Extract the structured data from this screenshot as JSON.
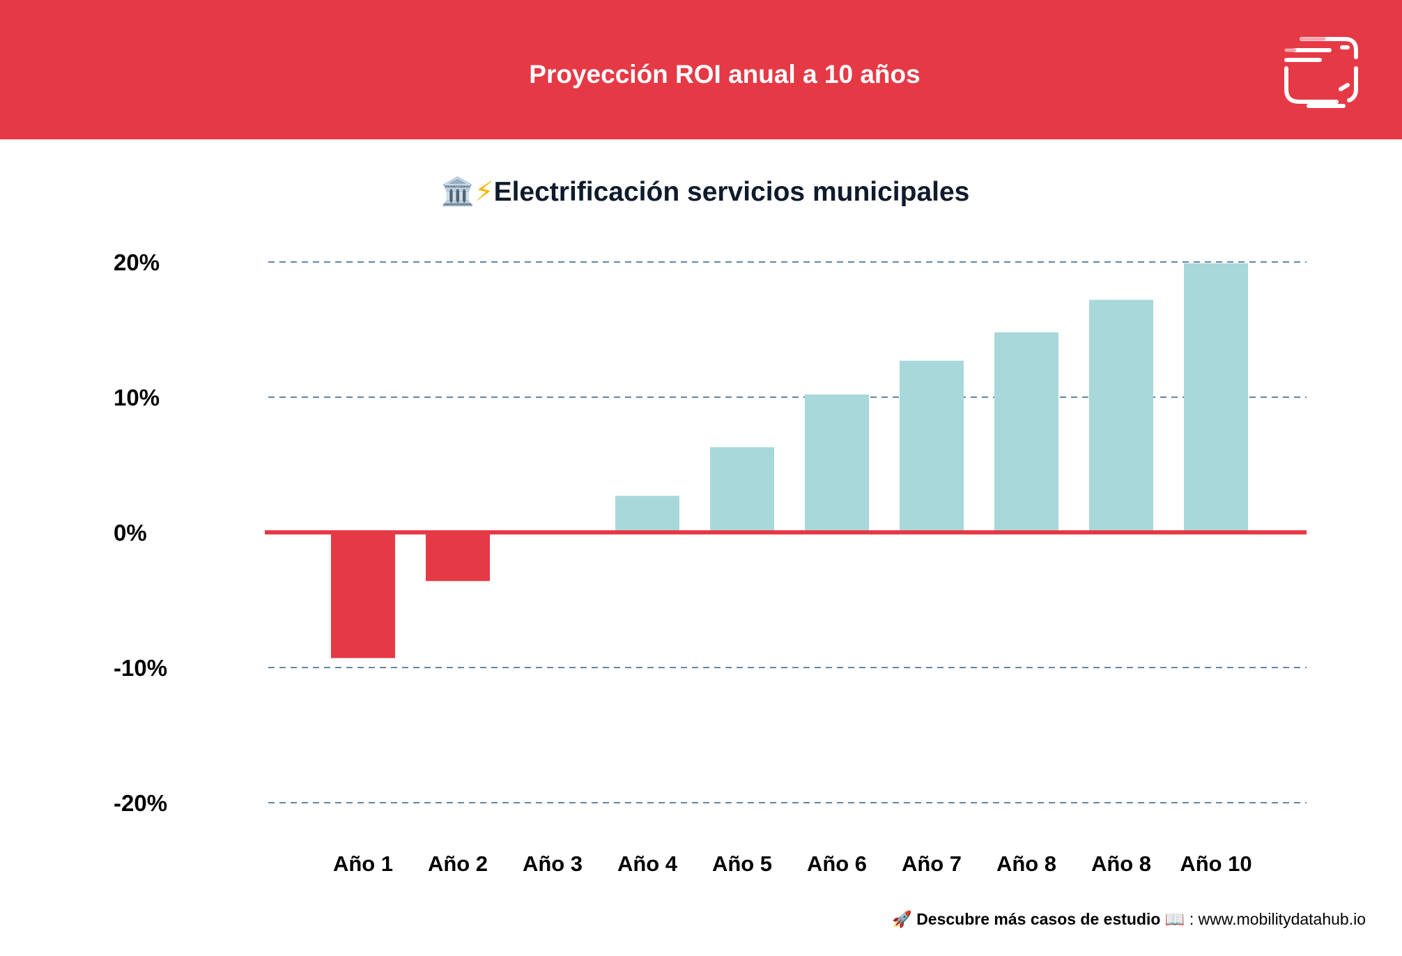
{
  "header": {
    "title": "Proyección ROI anual a 10 años",
    "logo_icon": "mobility-data-hub-logo-icon"
  },
  "subtitle": {
    "emoji_building": "🏛️",
    "emoji_bolt": "⚡",
    "text": "Electrificación servicios municipales"
  },
  "footer": {
    "emoji_rocket": "🚀",
    "cta": "Descubre más casos de estudio",
    "emoji_book": "📖",
    "url_text": ": www.mobilitydatahub.io"
  },
  "colors": {
    "accent": "#e63946",
    "positive_bar": "#a8d8da",
    "negative_bar": "#e63946",
    "grid": "#2e5f8a",
    "text": "#000000"
  },
  "chart_data": {
    "type": "bar",
    "title": "Electrificación servicios municipales",
    "categories": [
      "Año 1",
      "Año 2",
      "Año 3",
      "Año 4",
      "Año 5",
      "Año 6",
      "Año 7",
      "Año 8",
      "Año 8",
      "Año 10"
    ],
    "values": [
      -9.3,
      -3.6,
      0,
      2.7,
      6.3,
      10.2,
      12.7,
      14.8,
      17.2,
      19.9
    ],
    "ylim": [
      -20,
      20
    ],
    "yticks": [
      20,
      10,
      0,
      -10,
      -20
    ],
    "ytick_labels": [
      "20%",
      "10%",
      "0%",
      "-10%",
      "-20%"
    ],
    "grid": "dashed horizontal",
    "zero_line": true,
    "xlabel": "",
    "ylabel": ""
  }
}
